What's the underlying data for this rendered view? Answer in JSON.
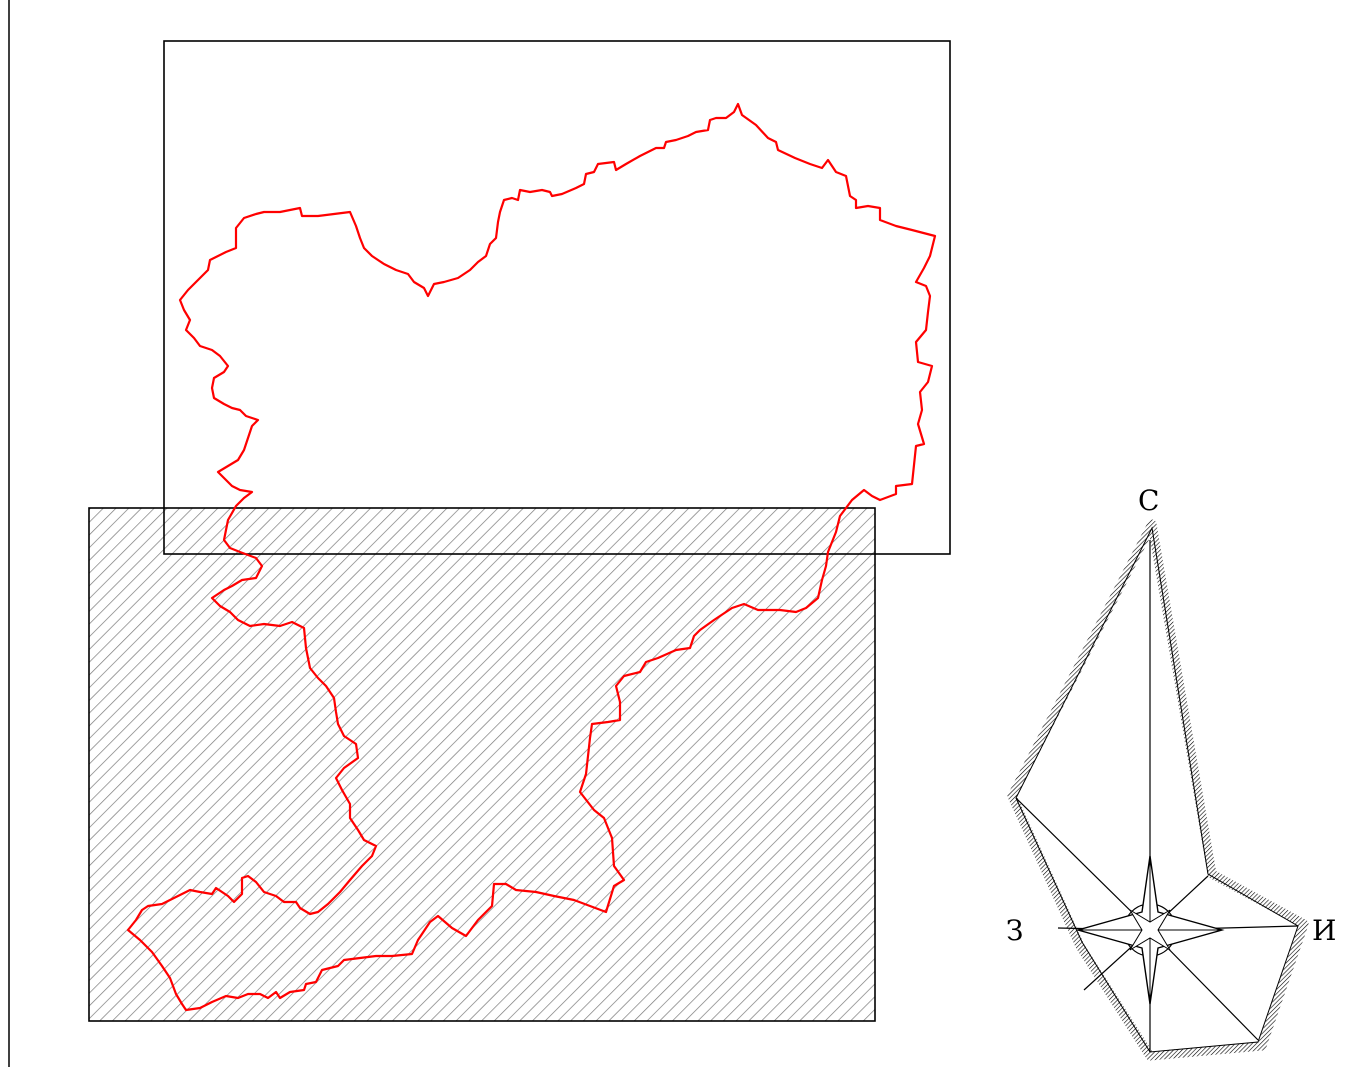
{
  "map": {
    "colors": {
      "boundary": "#ff0000",
      "frame": "#000000",
      "hatch": "#7a7a7a",
      "background": "#ffffff"
    },
    "layers": {
      "upper_frame": "unfilled",
      "lower_frame": "diagonal-hatch"
    },
    "compass": {
      "north_label": "С",
      "east_label": "И",
      "west_label": "З"
    }
  }
}
